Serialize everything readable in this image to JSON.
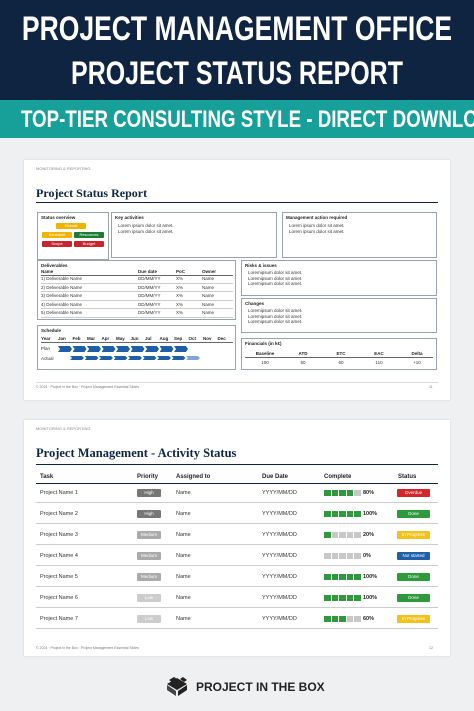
{
  "header": {
    "title_line1": "PROJECT MANAGEMENT OFFICE",
    "title_line2": "PROJECT STATUS REPORT",
    "banner": "TOP-TIER CONSULTING STYLE - DIRECT DOWNLOAD"
  },
  "slide1": {
    "breadcrumb": "MONITORING & REPORTING",
    "title": "Project Status Report",
    "status_overview": {
      "title": "Status overview",
      "items": [
        {
          "label": "Overall",
          "color": "#f0b400"
        },
        {
          "label": "Schedule",
          "color": "#f0b400"
        },
        {
          "label": "Resources",
          "color": "#1e7b34"
        },
        {
          "label": "Scope",
          "color": "#c9252c"
        },
        {
          "label": "Budget",
          "color": "#c9252c"
        }
      ]
    },
    "key_activities": {
      "title": "Key activities",
      "items": [
        "Lorem ipsum dolor sit amet.",
        "Lorem ipsum dolor sit amet."
      ]
    },
    "management_action": {
      "title": "Management action required",
      "items": [
        "Lorem ipsum dolor sit amet.",
        "Lorem ipsum dolor sit amet."
      ]
    },
    "deliverables": {
      "title": "Deliverables",
      "columns": [
        "Name",
        "Due date",
        "PoC",
        "Owner"
      ],
      "rows": [
        [
          "1) Deliverable Name",
          "DD/MM/YY",
          "X%",
          "Name"
        ],
        [
          "2) Deliverable Name",
          "DD/MM/YY",
          "X%",
          "Name"
        ],
        [
          "3) Deliverable Name",
          "DD/MM/YY",
          "X%",
          "Name"
        ],
        [
          "4) Deliverable Name",
          "DD/MM/YY",
          "X%",
          "Name"
        ],
        [
          "5) Deliverable Name",
          "DD/MM/YY",
          "X%",
          "Name"
        ]
      ]
    },
    "risks": {
      "title": "Risks & issues",
      "items": [
        "Loremipsum dolor sit amet.",
        "Loremipsum dolor sit amet.",
        "Loremipsum dolor sit amet."
      ]
    },
    "changes": {
      "title": "Changes",
      "items": [
        "Loremipsum dolor sit amet.",
        "Loremipsum dolor sit amet.",
        "Loremipsum dolor sit amet."
      ]
    },
    "schedule": {
      "title": "Schedule",
      "columns": [
        "Year",
        "Jan",
        "Feb",
        "Mar",
        "Apr",
        "May",
        "Jun",
        "Jul",
        "Aug",
        "Sep",
        "Oct",
        "Nov",
        "Dec"
      ],
      "rows": [
        "Plan",
        "Actual"
      ]
    },
    "financials": {
      "title": "Financials (in k€)",
      "columns": [
        "Baseline",
        "ATD",
        "ETC",
        "EAC",
        "Delta"
      ],
      "values": [
        "100",
        "50",
        "60",
        "110",
        "+10"
      ]
    },
    "footer": "© 2024 · Project in the Box · Project Management Essential Slides",
    "page": "11"
  },
  "slide2": {
    "breadcrumb": "MONITORING & REPORTING",
    "title": "Project Management - Activity Status",
    "columns": [
      "Task",
      "Priority",
      "Assigned to",
      "Due Date",
      "Complete",
      "Status"
    ],
    "rows": [
      {
        "task": "Project Name 1",
        "priority": "High",
        "assigned": "Name",
        "due": "YYYY/MM/DD",
        "complete": {
          "value": 80,
          "label": "80%"
        },
        "status": "Overdue",
        "status_color": "#d0262d"
      },
      {
        "task": "Project Name 2",
        "priority": "High",
        "assigned": "Name",
        "due": "YYYY/MM/DD",
        "complete": {
          "value": 100,
          "label": "100%"
        },
        "status": "Done",
        "status_color": "#2e9a3c"
      },
      {
        "task": "Project Name 3",
        "priority": "Medium",
        "assigned": "Name",
        "due": "YYYY/MM/DD",
        "complete": {
          "value": 20,
          "label": "20%"
        },
        "status": "In Progress",
        "status_color": "#f2c21a"
      },
      {
        "task": "Project Name 4",
        "priority": "Medium",
        "assigned": "Name",
        "due": "YYYY/MM/DD",
        "complete": {
          "value": 0,
          "label": "0%"
        },
        "status": "Not started",
        "status_color": "#1f5fa8"
      },
      {
        "task": "Project Name 5",
        "priority": "Medium",
        "assigned": "Name",
        "due": "YYYY/MM/DD",
        "complete": {
          "value": 100,
          "label": "100%"
        },
        "status": "Done",
        "status_color": "#2e9a3c"
      },
      {
        "task": "Project Name 6",
        "priority": "Low",
        "assigned": "Name",
        "due": "YYYY/MM/DD",
        "complete": {
          "value": 100,
          "label": "100%"
        },
        "status": "Done",
        "status_color": "#2e9a3c"
      },
      {
        "task": "Project Name 7",
        "priority": "Low",
        "assigned": "Name",
        "due": "YYYY/MM/DD",
        "complete": {
          "value": 60,
          "label": "60%"
        },
        "status": "In Progress",
        "status_color": "#f2c21a"
      }
    ],
    "footer": "© 2024 · Project in the Box · Project Management Essential Slides",
    "page": "12"
  },
  "brand": "PROJECT IN THE BOX"
}
